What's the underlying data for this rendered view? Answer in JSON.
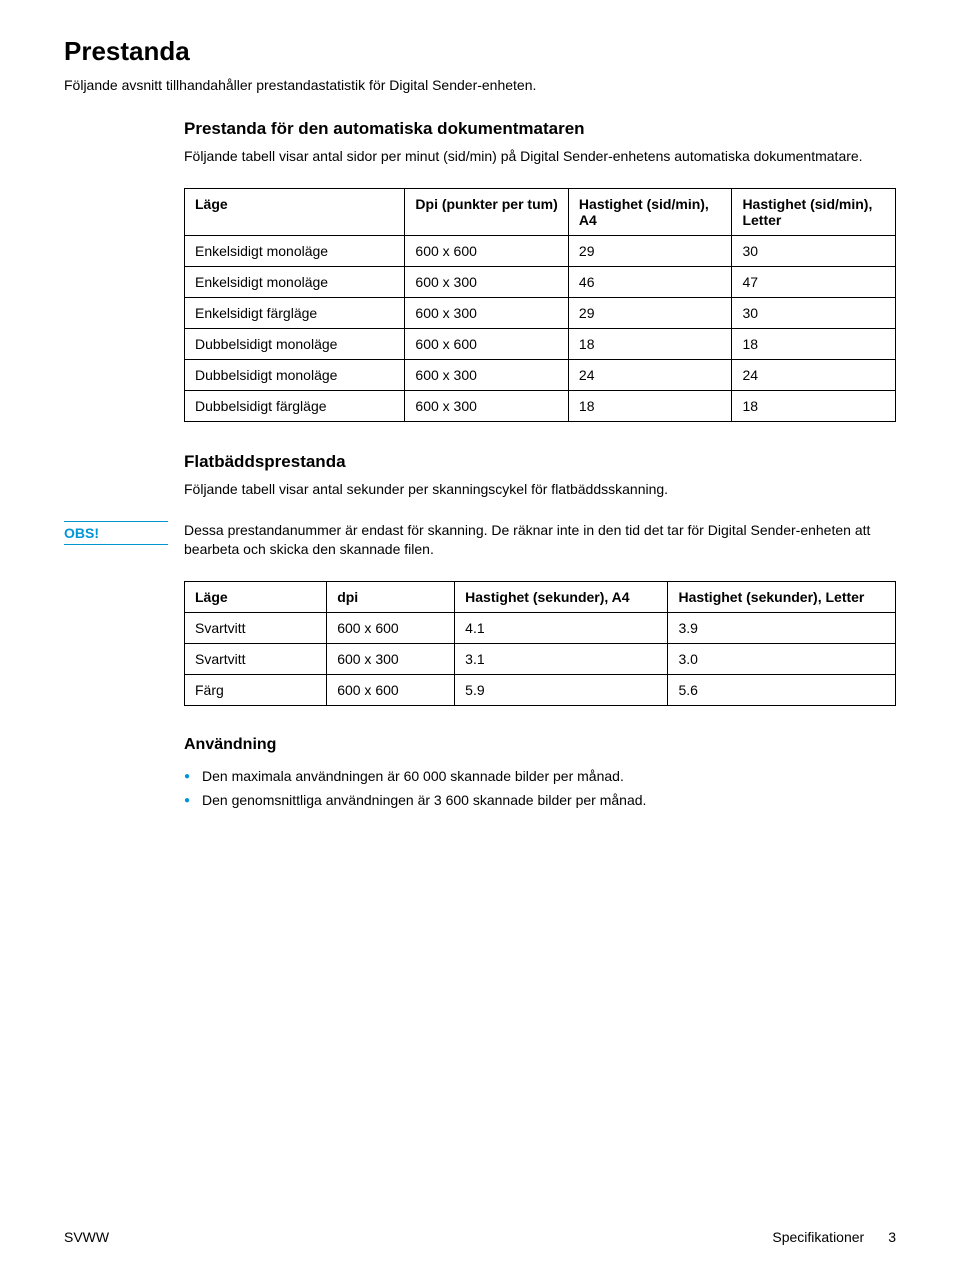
{
  "colors": {
    "accent": "#0096d6",
    "text": "#000000",
    "background": "#ffffff",
    "table_border": "#000000"
  },
  "typography": {
    "h1_fontsize": 26,
    "h2_fontsize": 17,
    "h3_fontsize": 16,
    "body_fontsize": 14
  },
  "heading_main": "Prestanda",
  "intro": "Följande avsnitt tillhandahåller prestandastatistik för Digital Sender-enheten.",
  "section1": {
    "heading": "Prestanda för den automatiska dokumentmataren",
    "text": "Följande tabell visar antal sidor per minut (sid/min) på Digital Sender-enhetens automatiska dokumentmatare."
  },
  "table1": {
    "type": "table",
    "columns": [
      "Läge",
      "Dpi (punkter per tum)",
      "Hastighet (sid/min), A4",
      "Hastighet (sid/min), Letter"
    ],
    "col_widths_pct": [
      31,
      23,
      23,
      23
    ],
    "rows": [
      [
        "Enkelsidigt monoläge",
        "600 x 600",
        "29",
        "30"
      ],
      [
        "Enkelsidigt monoläge",
        "600 x 300",
        "46",
        "47"
      ],
      [
        "Enkelsidigt färgläge",
        "600 x 300",
        "29",
        "30"
      ],
      [
        "Dubbelsidigt monoläge",
        "600 x 600",
        "18",
        "18"
      ],
      [
        "Dubbelsidigt monoläge",
        "600 x 300",
        "24",
        "24"
      ],
      [
        "Dubbelsidigt färgläge",
        "600 x 300",
        "18",
        "18"
      ]
    ]
  },
  "section2": {
    "heading": "Flatbäddsprestanda",
    "text": "Följande tabell visar antal sekunder per skanningscykel för flatbäddsskanning."
  },
  "obs": {
    "label": "OBS!",
    "text": "Dessa prestandanummer är endast för skanning. De räknar inte in den tid det tar för Digital Sender-enheten att bearbeta och skicka den skannade filen."
  },
  "table2": {
    "type": "table",
    "columns": [
      "Läge",
      "dpi",
      "Hastighet (sekunder), A4",
      "Hastighet (sekunder), Letter"
    ],
    "col_widths_pct": [
      20,
      18,
      30,
      32
    ],
    "rows": [
      [
        "Svartvitt",
        "600 x 600",
        "4.1",
        "3.9"
      ],
      [
        "Svartvitt",
        "600 x 300",
        "3.1",
        "3.0"
      ],
      [
        "Färg",
        "600 x 600",
        "5.9",
        "5.6"
      ]
    ]
  },
  "usage": {
    "heading": "Användning",
    "items": [
      "Den maximala användningen är 60 000 skannade bilder per månad.",
      "Den genomsnittliga användningen är 3 600 skannade bilder per månad."
    ]
  },
  "footer": {
    "left": "SVWW",
    "section": "Specifikationer",
    "page": "3"
  }
}
